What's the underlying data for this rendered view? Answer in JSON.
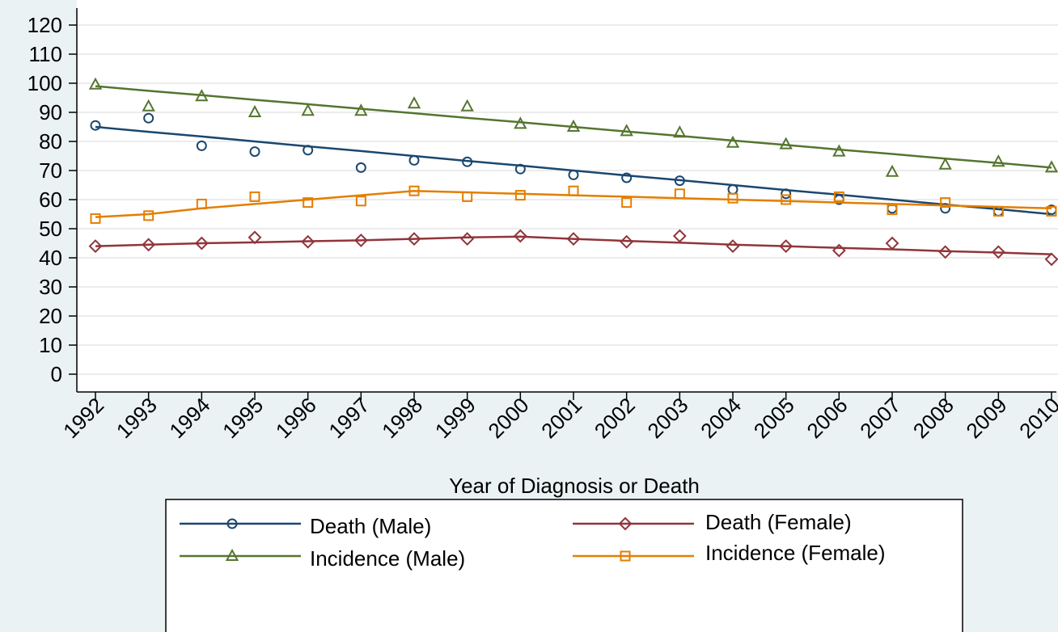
{
  "chart_data": {
    "type": "line",
    "x_label": "Year of Diagnosis or Death",
    "x": [
      1992,
      1993,
      1994,
      1995,
      1996,
      1997,
      1998,
      1999,
      2000,
      2001,
      2002,
      2003,
      2004,
      2005,
      2006,
      2007,
      2008,
      2009,
      2010
    ],
    "xlim": [
      1992,
      2010
    ],
    "xticks": [
      1992,
      1993,
      1994,
      1995,
      1996,
      1997,
      1998,
      1999,
      2000,
      2001,
      2002,
      2003,
      2004,
      2005,
      2006,
      2007,
      2008,
      2009,
      2010
    ],
    "ylim": [
      0,
      120
    ],
    "yticks": [
      0,
      10,
      20,
      30,
      40,
      50,
      60,
      70,
      80,
      90,
      100,
      110,
      120
    ],
    "grid": true,
    "legend": "bottom",
    "series": [
      {
        "name": "Death (Male)",
        "color": "#1a476f",
        "marker": "circle",
        "values": [
          85.5,
          88,
          78.5,
          76.5,
          77,
          71,
          73.5,
          73,
          70.5,
          68.5,
          67.5,
          66.5,
          63.5,
          62,
          60,
          57,
          57,
          56,
          56.5
        ],
        "fit": [
          85,
          83.3,
          81.7,
          80,
          78.3,
          76.7,
          75,
          73.3,
          71.7,
          70,
          68.3,
          66.7,
          65,
          63.3,
          61.7,
          60,
          58.3,
          56.7,
          55
        ]
      },
      {
        "name": "Death (Female)",
        "color": "#90353b",
        "marker": "diamond",
        "values": [
          44,
          44.5,
          45,
          47,
          45.5,
          46,
          46.5,
          46.5,
          47.5,
          46.5,
          45.5,
          47.5,
          44,
          44,
          42.5,
          45,
          42,
          42,
          39.5
        ],
        "fit": [
          44,
          44.5,
          45,
          45.3,
          45.7,
          46,
          46.5,
          47,
          47.3,
          46.5,
          45.8,
          45.2,
          44.5,
          44,
          43.4,
          42.9,
          42.3,
          41.8,
          41.2
        ]
      },
      {
        "name": "Incidence (Male)",
        "color": "#55752f",
        "marker": "triangle",
        "values": [
          99.5,
          92,
          95.5,
          90,
          90.5,
          90.5,
          93,
          92,
          86,
          85,
          83.5,
          83,
          79.5,
          79,
          76.5,
          69.5,
          72,
          73,
          71
        ],
        "fit": [
          99,
          97.4,
          95.9,
          94.3,
          92.8,
          91.2,
          89.7,
          88.1,
          86.6,
          85,
          83.4,
          81.9,
          80.3,
          78.8,
          77.2,
          75.7,
          74.1,
          72.6,
          71
        ]
      },
      {
        "name": "Incidence (Female)",
        "color": "#e37e00",
        "marker": "square",
        "values": [
          53.5,
          54.5,
          58.5,
          61,
          59,
          59.5,
          63,
          61,
          61.5,
          63,
          59,
          62,
          60.5,
          60,
          61,
          56.5,
          59,
          56,
          56
        ],
        "fit": [
          54,
          55,
          57,
          58.5,
          60,
          61.5,
          63,
          62.5,
          62,
          61.5,
          61,
          60.5,
          60,
          59.5,
          59,
          58.5,
          58,
          57.5,
          57
        ]
      }
    ]
  }
}
